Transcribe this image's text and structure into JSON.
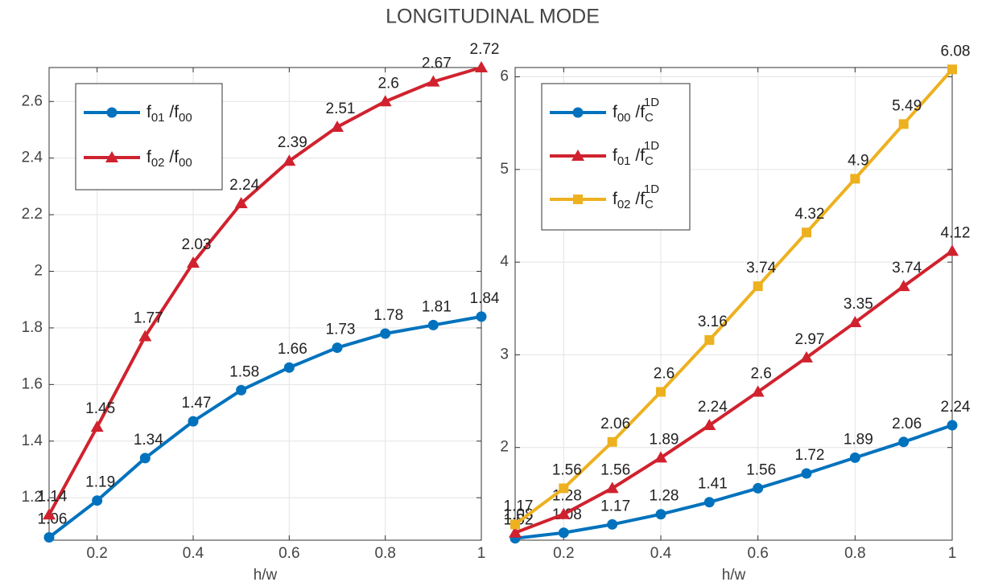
{
  "title": "LONGITUDINAL MODE",
  "chart_data": [
    {
      "type": "line",
      "xlabel": "h/w",
      "grid": true,
      "legend": "upper left",
      "x": [
        0.1,
        0.2,
        0.3,
        0.4,
        0.5,
        0.6,
        0.7,
        0.8,
        0.9,
        1
      ],
      "xlim": [
        0.1,
        1
      ],
      "xticks": [
        0.2,
        0.4,
        0.6,
        0.8,
        1
      ],
      "ylim": [
        1.05,
        2.72
      ],
      "yticks": [
        1.2,
        1.4,
        1.6,
        1.8,
        2,
        2.2,
        2.4,
        2.6
      ],
      "series": [
        {
          "name": "f01 /f00",
          "color": "#0072bd",
          "marker": "circle",
          "values": [
            1.06,
            1.19,
            1.34,
            1.47,
            1.58,
            1.66,
            1.73,
            1.78,
            1.81,
            1.84
          ]
        },
        {
          "name": "f02 /f00",
          "color": "#d0222e",
          "marker": "triangle",
          "values": [
            1.14,
            1.45,
            1.77,
            2.03,
            2.24,
            2.39,
            2.51,
            2.6,
            2.67,
            2.72
          ]
        }
      ]
    },
    {
      "type": "line",
      "xlabel": "h/w",
      "grid": true,
      "legend": "upper left",
      "x": [
        0.1,
        0.2,
        0.3,
        0.4,
        0.5,
        0.6,
        0.7,
        0.8,
        0.9,
        1
      ],
      "xlim": [
        0.1,
        1
      ],
      "xticks": [
        0.2,
        0.4,
        0.6,
        0.8,
        1
      ],
      "ylim": [
        1.0,
        6.1
      ],
      "yticks": [
        2,
        3,
        4,
        5,
        6
      ],
      "series": [
        {
          "name": "f00 /fC1D",
          "color": "#0072bd",
          "marker": "circle",
          "values": [
            1.02,
            1.08,
            1.17,
            1.28,
            1.41,
            1.56,
            1.72,
            1.89,
            2.06,
            2.24
          ]
        },
        {
          "name": "f01 /fC1D",
          "color": "#d0222e",
          "marker": "triangle",
          "values": [
            1.08,
            1.28,
            1.56,
            1.89,
            2.24,
            2.6,
            2.97,
            3.35,
            3.74,
            4.12
          ]
        },
        {
          "name": "f02 /fC1D",
          "color": "#edb120",
          "marker": "square",
          "values": [
            1.17,
            1.56,
            2.06,
            2.6,
            3.16,
            3.74,
            4.32,
            4.9,
            5.49,
            6.08
          ]
        }
      ]
    }
  ]
}
